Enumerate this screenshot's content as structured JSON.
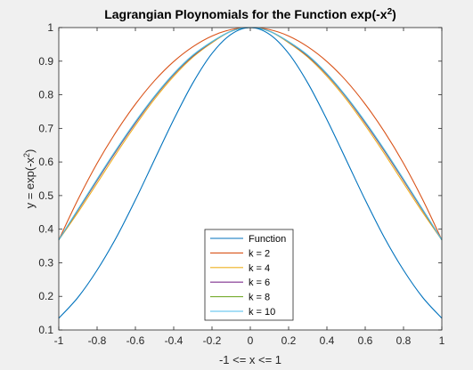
{
  "chart_data": {
    "type": "line",
    "title_main": "Lagrangian Ploynomials for the Function exp(-x",
    "title_sup": "2",
    "title_end": ")",
    "xlabel": "-1 <= x <= 1",
    "ylabel_main": "y = exp(-x",
    "ylabel_sup": "2",
    "ylabel_end": ")",
    "xlim": [
      -1,
      1
    ],
    "ylim": [
      0.1,
      1.0
    ],
    "xticks": [
      -1,
      -0.8,
      -0.6,
      -0.4,
      -0.2,
      0,
      0.2,
      0.4,
      0.6,
      0.8,
      1
    ],
    "xtick_labels": [
      "-1",
      "-0.8",
      "-0.6",
      "-0.4",
      "-0.2",
      "0",
      "0.2",
      "0.4",
      "0.6",
      "0.8",
      "1"
    ],
    "yticks": [
      0.1,
      0.2,
      0.3,
      0.4,
      0.5,
      0.6,
      0.7,
      0.8,
      0.9,
      1.0
    ],
    "ytick_labels": [
      "0.1",
      "0.2",
      "0.3",
      "0.4",
      "0.5",
      "0.6",
      "0.7",
      "0.8",
      "0.9",
      "1"
    ],
    "grid": false,
    "legend_position": "bottom-center",
    "x": [
      -1.0,
      -0.9,
      -0.8,
      -0.7,
      -0.6,
      -0.5,
      -0.4,
      -0.3,
      -0.2,
      -0.1,
      0.0,
      0.1,
      0.2,
      0.3,
      0.4,
      0.5,
      0.6,
      0.7,
      0.8,
      0.9,
      1.0
    ],
    "series": [
      {
        "name": "Function",
        "color": "#0072bd",
        "values": [
          0.135,
          0.197,
          0.278,
          0.375,
          0.487,
          0.607,
          0.726,
          0.835,
          0.923,
          0.98,
          1.0,
          0.98,
          0.923,
          0.835,
          0.726,
          0.607,
          0.487,
          0.375,
          0.278,
          0.197,
          0.135
        ]
      },
      {
        "name": "k = 2",
        "color": "#d95319",
        "values": [
          0.368,
          0.488,
          0.596,
          0.69,
          0.772,
          0.842,
          0.899,
          0.943,
          0.975,
          0.994,
          1.0,
          0.994,
          0.975,
          0.943,
          0.899,
          0.842,
          0.772,
          0.69,
          0.596,
          0.488,
          0.368
        ]
      },
      {
        "name": "k = 4",
        "color": "#edb120",
        "values": [
          0.368,
          0.45,
          0.537,
          0.625,
          0.709,
          0.787,
          0.855,
          0.912,
          0.955,
          0.989,
          1.0,
          0.989,
          0.955,
          0.912,
          0.855,
          0.787,
          0.709,
          0.625,
          0.537,
          0.45,
          0.368
        ]
      },
      {
        "name": "k = 6",
        "color": "#7e2f8e",
        "values": [
          0.368,
          0.456,
          0.545,
          0.633,
          0.716,
          0.793,
          0.86,
          0.915,
          0.957,
          0.989,
          1.0,
          0.989,
          0.957,
          0.915,
          0.86,
          0.793,
          0.716,
          0.633,
          0.545,
          0.456,
          0.368
        ]
      },
      {
        "name": "k = 8",
        "color": "#77ac30",
        "values": [
          0.368,
          0.458,
          0.548,
          0.636,
          0.719,
          0.795,
          0.862,
          0.917,
          0.958,
          0.989,
          1.0,
          0.989,
          0.958,
          0.917,
          0.862,
          0.795,
          0.719,
          0.636,
          0.548,
          0.458,
          0.368
        ]
      },
      {
        "name": "k = 10",
        "color": "#4dbeee",
        "values": [
          0.368,
          0.459,
          0.549,
          0.637,
          0.72,
          0.796,
          0.863,
          0.918,
          0.958,
          0.989,
          1.0,
          0.989,
          0.958,
          0.918,
          0.863,
          0.796,
          0.72,
          0.637,
          0.549,
          0.459,
          0.368
        ]
      }
    ]
  }
}
